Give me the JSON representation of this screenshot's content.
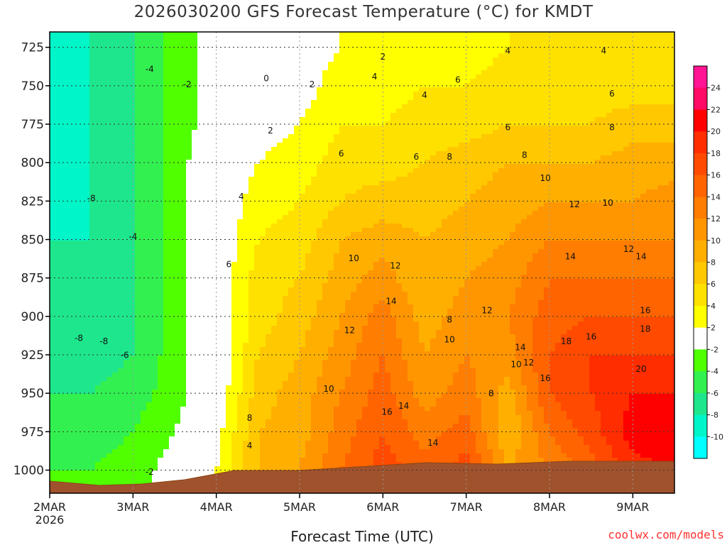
{
  "chart_data": {
    "type": "heatmap",
    "title": "2026030200 GFS Forecast Temperature (°C) for KMDT",
    "xlabel": "Forecast Time (UTC)",
    "ylabel": "",
    "credit": "coolwx.com/models",
    "x_ticks": [
      "2MAR",
      "3MAR",
      "4MAR",
      "5MAR",
      "6MAR",
      "7MAR",
      "8MAR",
      "9MAR"
    ],
    "x_first_tick_year": "2026",
    "y_ticks": [
      725,
      750,
      775,
      800,
      825,
      850,
      875,
      900,
      925,
      950,
      975,
      1000
    ],
    "ylim": [
      1015,
      715
    ],
    "xlim_days": [
      0,
      7.5
    ],
    "grid": true,
    "colorbar": {
      "ticks": [
        24,
        22,
        20,
        18,
        16,
        14,
        12,
        10,
        8,
        6,
        4,
        2,
        -2,
        -4,
        -6,
        -8,
        -10
      ],
      "colors": [
        "#ff1493",
        "#ff0a64",
        "#ff0000",
        "#ff2d00",
        "#ff4a00",
        "#ff6400",
        "#ff7d00",
        "#ff9600",
        "#ffaf00",
        "#ffc800",
        "#ffe100",
        "#ffff00",
        "#ffffff",
        "#50ff00",
        "#32f050",
        "#1ee68c",
        "#00f5c8",
        "#00ffff"
      ]
    },
    "series_by_time": [
      {
        "day": 0.0,
        "values": [
          -9,
          -9,
          -9,
          -9,
          -9,
          -8,
          -8,
          -8,
          -7,
          -6,
          -5,
          -4
        ]
      },
      {
        "day": 0.5,
        "values": [
          -8,
          -8,
          -8,
          -8,
          -8,
          -8,
          -8,
          -8,
          -7,
          -6,
          -5,
          -4
        ]
      },
      {
        "day": 1.0,
        "values": [
          -6,
          -6,
          -6,
          -6,
          -6,
          -6,
          -6,
          -6,
          -6,
          -5,
          -4,
          -3
        ]
      },
      {
        "day": 1.5,
        "values": [
          -3,
          -3,
          -3,
          -3,
          -3,
          -3,
          -3,
          -3,
          -3,
          -3,
          -2,
          -1
        ]
      },
      {
        "day": 2.0,
        "values": [
          -1,
          -1,
          -1,
          0,
          0,
          0,
          0,
          0,
          0,
          0,
          1,
          2
        ]
      },
      {
        "day": 2.5,
        "values": [
          0,
          0,
          1,
          2,
          3,
          4,
          5,
          5,
          6,
          7,
          8,
          8
        ]
      },
      {
        "day": 3.0,
        "values": [
          1,
          1,
          2,
          3,
          4,
          5,
          6,
          7,
          8,
          9,
          9,
          10
        ]
      },
      {
        "day": 3.5,
        "values": [
          2,
          3,
          4,
          5,
          6,
          8,
          9,
          10,
          11,
          12,
          13,
          14
        ]
      },
      {
        "day": 4.0,
        "values": [
          2,
          3,
          4,
          5,
          7,
          9,
          11,
          13,
          14,
          15,
          16,
          17
        ]
      },
      {
        "day": 4.5,
        "values": [
          3,
          4,
          5,
          6,
          7,
          8,
          8,
          9,
          10,
          11,
          13,
          15
        ]
      },
      {
        "day": 5.0,
        "values": [
          3,
          4,
          5,
          7,
          8,
          9,
          10,
          11,
          12,
          13,
          15,
          17
        ]
      },
      {
        "day": 5.5,
        "values": [
          4,
          5,
          6,
          8,
          9,
          10,
          11,
          12,
          11,
          9,
          8,
          10
        ]
      },
      {
        "day": 6.0,
        "values": [
          4,
          5,
          6,
          8,
          10,
          12,
          14,
          15,
          16,
          16,
          14,
          12
        ]
      },
      {
        "day": 6.5,
        "values": [
          4,
          5,
          6,
          8,
          10,
          12,
          14,
          16,
          18,
          18,
          17,
          15
        ]
      },
      {
        "day": 7.0,
        "values": [
          4,
          5,
          7,
          9,
          10,
          12,
          14,
          16,
          18,
          20,
          21,
          19
        ]
      },
      {
        "day": 7.5,
        "values": [
          4,
          5,
          7,
          9,
          11,
          12,
          14,
          16,
          18,
          20,
          22,
          20
        ]
      }
    ],
    "contour_labels": [
      {
        "text": "-4",
        "day": 1.2,
        "p": 741
      },
      {
        "text": "-2",
        "day": 1.65,
        "p": 751
      },
      {
        "text": "0",
        "day": 2.6,
        "p": 747
      },
      {
        "text": "2",
        "day": 3.15,
        "p": 751
      },
      {
        "text": "2",
        "day": 2.65,
        "p": 781
      },
      {
        "text": "2",
        "day": 4.0,
        "p": 733
      },
      {
        "text": "4",
        "day": 5.5,
        "p": 729
      },
      {
        "text": "4",
        "day": 6.65,
        "p": 729
      },
      {
        "text": "4",
        "day": 3.9,
        "p": 746
      },
      {
        "text": "4",
        "day": 4.5,
        "p": 758
      },
      {
        "text": "6",
        "day": 4.9,
        "p": 748
      },
      {
        "text": "6",
        "day": 6.75,
        "p": 757
      },
      {
        "text": "6",
        "day": 3.5,
        "p": 796
      },
      {
        "text": "6",
        "day": 4.4,
        "p": 798
      },
      {
        "text": "6",
        "day": 5.5,
        "p": 779
      },
      {
        "text": "8",
        "day": 4.8,
        "p": 798
      },
      {
        "text": "8",
        "day": 6.75,
        "p": 779
      },
      {
        "text": "8",
        "day": 5.7,
        "p": 797
      },
      {
        "text": "4",
        "day": 2.3,
        "p": 824
      },
      {
        "text": "10",
        "day": 5.95,
        "p": 812
      },
      {
        "text": "6",
        "day": 2.15,
        "p": 868
      },
      {
        "text": "10",
        "day": 3.65,
        "p": 864
      },
      {
        "text": "12",
        "day": 6.3,
        "p": 829
      },
      {
        "text": "10",
        "day": 6.7,
        "p": 828
      },
      {
        "text": "12",
        "day": 6.95,
        "p": 858
      },
      {
        "text": "12",
        "day": 4.15,
        "p": 869
      },
      {
        "text": "14",
        "day": 6.25,
        "p": 863
      },
      {
        "text": "14",
        "day": 7.1,
        "p": 863
      },
      {
        "text": "14",
        "day": 4.1,
        "p": 892
      },
      {
        "text": "8",
        "day": 4.8,
        "p": 904
      },
      {
        "text": "12",
        "day": 5.25,
        "p": 898
      },
      {
        "text": "16",
        "day": 7.15,
        "p": 898
      },
      {
        "text": "12",
        "day": 3.6,
        "p": 911
      },
      {
        "text": "10",
        "day": 4.8,
        "p": 917
      },
      {
        "text": "14",
        "day": 5.65,
        "p": 922
      },
      {
        "text": "18",
        "day": 6.2,
        "p": 918
      },
      {
        "text": "16",
        "day": 6.5,
        "p": 915
      },
      {
        "text": "18",
        "day": 7.15,
        "p": 910
      },
      {
        "text": "10",
        "day": 5.6,
        "p": 933
      },
      {
        "text": "12",
        "day": 5.75,
        "p": 932
      },
      {
        "text": "20",
        "day": 7.1,
        "p": 936
      },
      {
        "text": "16",
        "day": 5.95,
        "p": 942
      },
      {
        "text": "8",
        "day": 2.4,
        "p": 968
      },
      {
        "text": "10",
        "day": 3.35,
        "p": 949
      },
      {
        "text": "8",
        "day": 5.3,
        "p": 952
      },
      {
        "text": "16",
        "day": 4.05,
        "p": 964
      },
      {
        "text": "14",
        "day": 4.25,
        "p": 960
      },
      {
        "text": "14",
        "day": 4.6,
        "p": 984
      },
      {
        "text": "4",
        "day": 2.4,
        "p": 986
      },
      {
        "text": "-8",
        "day": 0.5,
        "p": 825
      },
      {
        "text": "-4",
        "day": 1.0,
        "p": 850
      },
      {
        "text": "-8",
        "day": 0.35,
        "p": 916
      },
      {
        "text": "-8",
        "day": 0.65,
        "p": 918
      },
      {
        "text": "-6",
        "day": 0.9,
        "p": 927
      },
      {
        "text": "-2",
        "day": 1.2,
        "p": 1003
      }
    ]
  }
}
